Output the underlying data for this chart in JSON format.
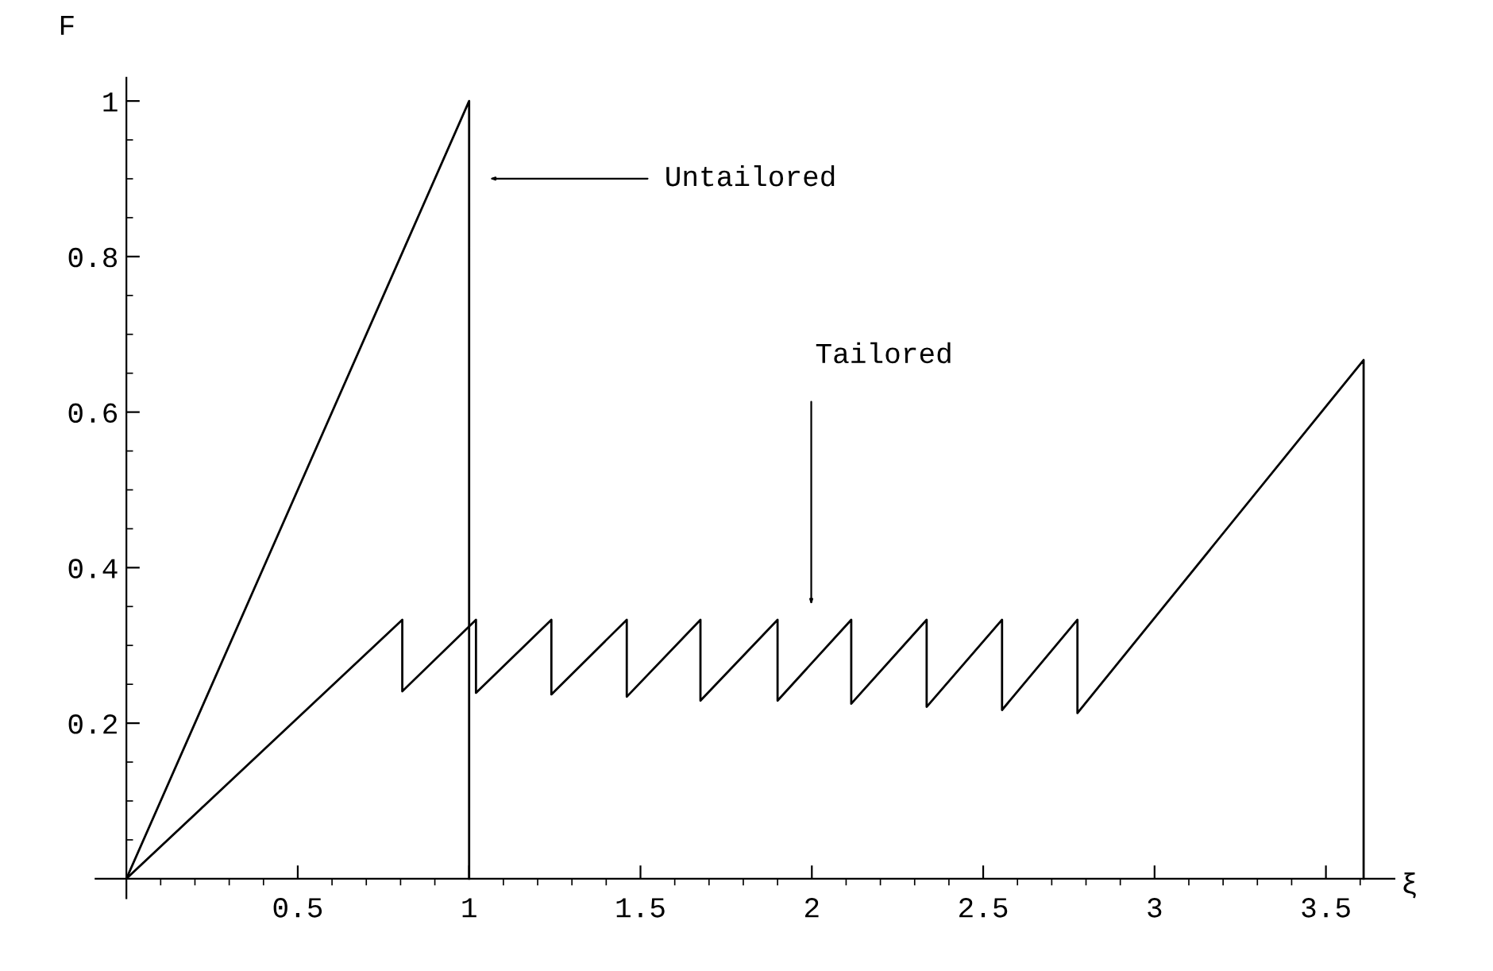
{
  "chart_data": {
    "type": "line",
    "xlabel": "ξ",
    "ylabel": "F",
    "series": [
      {
        "color": "#000000",
        "x": [
          0,
          1,
          1
        ],
        "values": [
          0,
          1,
          0
        ]
      },
      {
        "color": "#000000",
        "x": [
          0,
          0.805,
          0.805,
          1.02,
          1.02,
          1.24,
          1.24,
          1.46,
          1.46,
          1.675,
          1.675,
          1.9,
          1.9,
          2.115,
          2.115,
          2.335,
          2.335,
          2.555,
          2.555,
          2.775,
          2.775,
          3.61,
          3.61
        ],
        "values": [
          0,
          0.333,
          0.241,
          0.333,
          0.239,
          0.333,
          0.237,
          0.333,
          0.234,
          0.333,
          0.229,
          0.333,
          0.229,
          0.333,
          0.225,
          0.333,
          0.221,
          0.333,
          0.217,
          0.333,
          0.213,
          0.667,
          0
        ]
      }
    ],
    "annotations": [
      "Untailored",
      "Tailored"
    ],
    "xlim": [
      -0.09,
      3.7
    ],
    "ylim": [
      -0.025,
      1.03
    ],
    "xticks": [
      {
        "value": 0.1,
        "label": null
      },
      {
        "value": 0.2,
        "label": null
      },
      {
        "value": 0.3,
        "label": null
      },
      {
        "value": 0.4,
        "label": null
      },
      0.5,
      {
        "value": 0.6,
        "label": null
      },
      {
        "value": 0.7,
        "label": null
      },
      {
        "value": 0.8,
        "label": null
      },
      {
        "value": 0.9,
        "label": null
      },
      1,
      {
        "value": 1.1,
        "label": null
      },
      {
        "value": 1.2,
        "label": null
      },
      {
        "value": 1.3,
        "label": null
      },
      {
        "value": 1.4,
        "label": null
      },
      1.5,
      {
        "value": 1.6,
        "label": null
      },
      {
        "value": 1.7,
        "label": null
      },
      {
        "value": 1.8,
        "label": null
      },
      {
        "value": 1.9,
        "label": null
      },
      2,
      {
        "value": 2.1,
        "label": null
      },
      {
        "value": 2.2,
        "label": null
      },
      {
        "value": 2.3,
        "label": null
      },
      {
        "value": 2.4,
        "label": null
      },
      2.5,
      {
        "value": 2.6,
        "label": null
      },
      {
        "value": 2.7,
        "label": null
      },
      {
        "value": 2.8,
        "label": null
      },
      {
        "value": 2.9,
        "label": null
      },
      3,
      {
        "value": 3.1,
        "label": null
      },
      {
        "value": 3.2,
        "label": null
      },
      {
        "value": 3.3,
        "label": null
      },
      {
        "value": 3.4,
        "label": null
      },
      3.5,
      {
        "value": 3.6,
        "label": null
      }
    ],
    "yticks": [
      {
        "value": 0.05,
        "label": null
      },
      {
        "value": 0.1,
        "label": null
      },
      {
        "value": 0.15,
        "label": null
      },
      0.2,
      {
        "value": 0.25,
        "label": null
      },
      {
        "value": 0.3,
        "label": null
      },
      {
        "value": 0.35,
        "label": null
      },
      0.4,
      {
        "value": 0.45,
        "label": null
      },
      {
        "value": 0.5,
        "label": null
      },
      {
        "value": 0.55,
        "label": null
      },
      0.6,
      {
        "value": 0.65,
        "label": null
      },
      {
        "value": 0.7,
        "label": null
      },
      {
        "value": 0.75,
        "label": null
      },
      0.8,
      {
        "value": 0.85,
        "label": null
      },
      {
        "value": 0.9,
        "label": null
      },
      {
        "value": 0.95,
        "label": null
      },
      1
    ]
  }
}
